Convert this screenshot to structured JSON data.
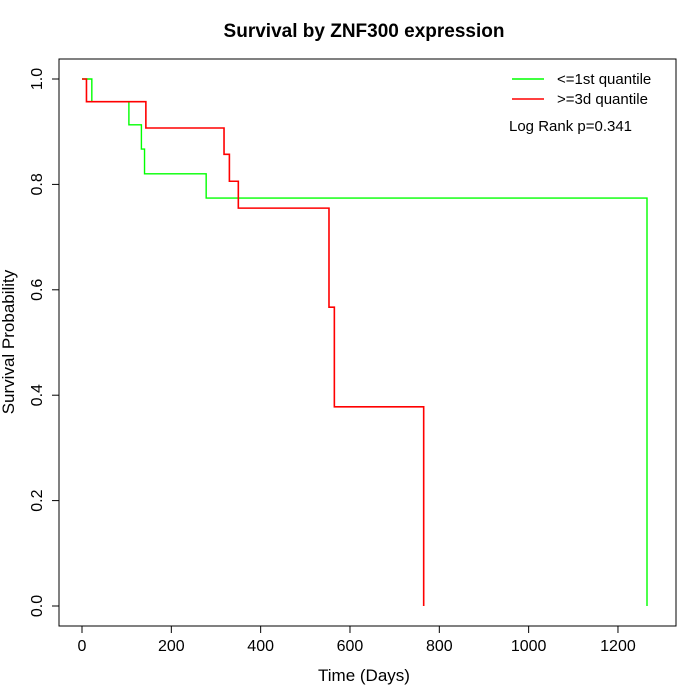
{
  "chart_data": {
    "type": "line",
    "title": "Survival by ZNF300 expression",
    "xlabel": "Time (Days)",
    "ylabel": "Survival Probability",
    "xlim": [
      0,
      1265
    ],
    "ylim": [
      0,
      1
    ],
    "x_ticks": [
      "0",
      "200",
      "400",
      "600",
      "800",
      "1000",
      "1200"
    ],
    "y_ticks": [
      "0.0",
      "0.2",
      "0.4",
      "0.6",
      "0.8",
      "1.0"
    ],
    "legend_position": "top-right",
    "annotation": "Log Rank p=0.341",
    "series": [
      {
        "name": "<=1st quantile",
        "color": "#00ff00",
        "steps": [
          [
            0,
            1.0
          ],
          [
            22,
            0.957
          ],
          [
            105,
            0.913
          ],
          [
            133,
            0.867
          ],
          [
            140,
            0.82
          ],
          [
            278,
            0.774
          ],
          [
            1265,
            0.0
          ]
        ]
      },
      {
        "name": ">=3d quantile",
        "color": "#ff0000",
        "steps": [
          [
            0,
            1.0
          ],
          [
            10,
            0.957
          ],
          [
            143,
            0.907
          ],
          [
            318,
            0.857
          ],
          [
            330,
            0.806
          ],
          [
            350,
            0.755
          ],
          [
            553,
            0.567
          ],
          [
            565,
            0.378
          ],
          [
            765,
            0.0
          ]
        ]
      }
    ]
  }
}
